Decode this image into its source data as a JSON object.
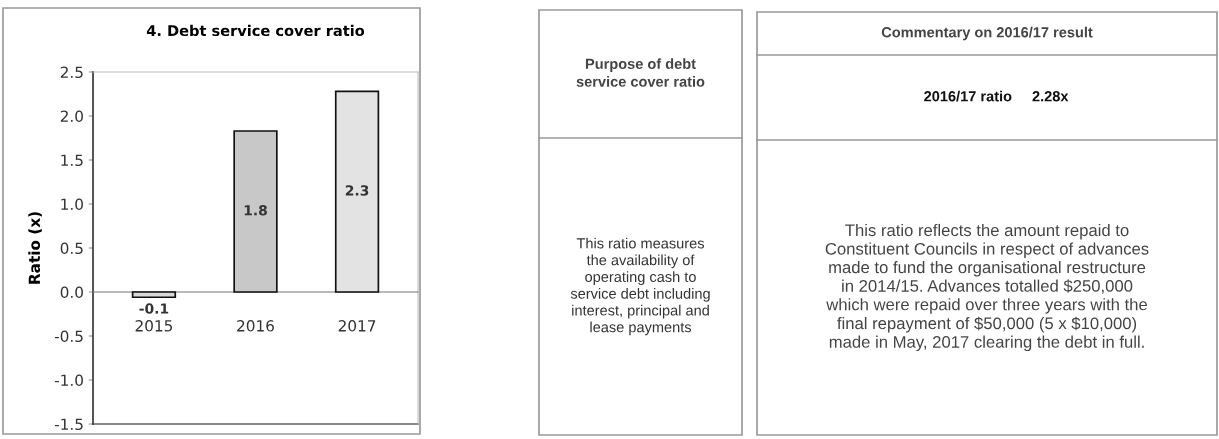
{
  "chart_data": [
    {
      "type": "bar",
      "title": "4. Debt service cover ratio",
      "ylabel": "Ratio (x)",
      "categories": [
        "2015",
        "2016",
        "2017"
      ],
      "values": [
        -0.06,
        1.83,
        2.28
      ],
      "colors": [
        "#d9d9d9",
        "#c8c8c8",
        "#e3e3e3"
      ],
      "value_labels": [
        "-0.1",
        "1.8",
        "2.3"
      ],
      "ylim": [
        -1.5,
        2.5
      ],
      "yticks": [
        {
          "value": -1.5,
          "label": "-1.5"
        },
        {
          "value": -1.0,
          "label": "-1.0"
        },
        {
          "value": -0.5,
          "label": "-0.5"
        },
        {
          "value": 0.0,
          "label": "0.0"
        },
        {
          "value": 0.5,
          "label": "0.5"
        },
        {
          "value": 1.0,
          "label": "1.0"
        },
        {
          "value": 1.5,
          "label": "1.5"
        },
        {
          "value": 2.0,
          "label": "2.0"
        },
        {
          "value": 2.5,
          "label": "2.5"
        }
      ]
    },
    {
      "type": "other",
      "title": "Purpose of debt\nservice cover ratio",
      "annotations": [
        "This ratio measures\nthe availability of\noperating cash to\nservice debt including\ninterest, principal and\nlease payments"
      ]
    },
    {
      "type": "other",
      "title": "Commentary on 2016/17 result",
      "annotations": [
        "2016/17 ratio",
        "2.28x",
        "This ratio reflects the amount repaid to\nConstituent Councils in respect of advances\nmade to fund the organisational restructure\nin 2014/15. Advances totalled $250,000\nwhich were repaid over three years with the\nfinal repayment of $50,000 (5 x $10,000)\nmade in May, 2017 clearing the debt in full."
      ]
    }
  ]
}
